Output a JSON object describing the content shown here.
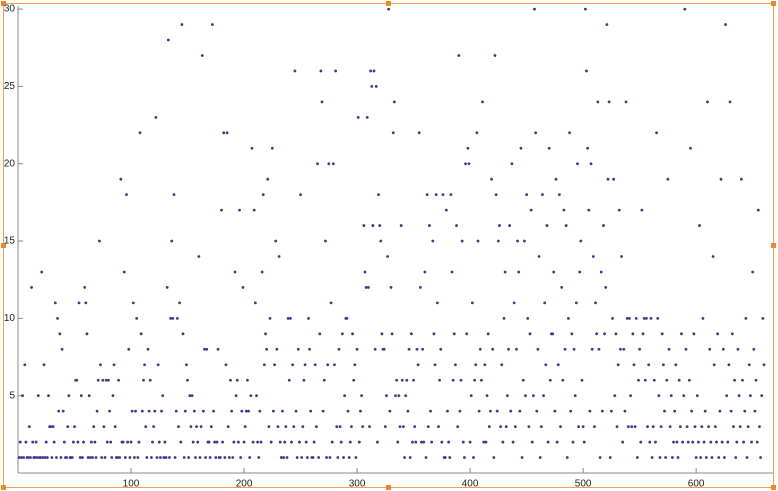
{
  "chart_data": {
    "type": "scatter",
    "color": "#3a3a8c",
    "xlim": [
      0,
      668
    ],
    "ylim": [
      0,
      30.2
    ],
    "xticks": [
      100,
      200,
      300,
      400,
      500,
      600
    ],
    "yticks": [
      5,
      10,
      15,
      20,
      25,
      30
    ],
    "x": [
      1,
      2,
      3,
      4,
      5,
      6,
      7,
      8,
      9,
      10,
      11,
      12,
      13,
      14,
      15,
      16,
      17,
      18,
      19,
      20,
      21,
      22,
      23,
      24,
      25,
      26,
      27,
      28,
      29,
      30,
      31,
      32,
      33,
      34,
      35,
      36,
      37,
      38,
      39,
      40,
      41,
      42,
      43,
      44,
      45,
      46,
      47,
      48,
      49,
      50,
      51,
      52,
      53,
      54,
      55,
      56,
      57,
      58,
      59,
      60,
      61,
      62,
      63,
      64,
      65,
      66,
      67,
      68,
      69,
      70,
      71,
      72,
      73,
      74,
      75,
      76,
      77,
      78,
      79,
      80,
      81,
      82,
      83,
      84,
      85,
      86,
      87,
      88,
      89,
      90,
      91,
      92,
      93,
      94,
      95,
      96,
      97,
      98,
      99,
      100,
      101,
      102,
      103,
      104,
      105,
      106,
      107,
      108,
      109,
      110,
      111,
      112,
      113,
      114,
      115,
      116,
      117,
      118,
      119,
      120,
      121,
      122,
      123,
      124,
      125,
      126,
      127,
      128,
      129,
      130,
      131,
      132,
      133,
      134,
      135,
      136,
      137,
      138,
      139,
      140,
      141,
      142,
      143,
      144,
      145,
      146,
      147,
      148,
      149,
      150,
      151,
      152,
      153,
      154,
      155,
      156,
      157,
      158,
      159,
      160,
      161,
      162,
      163,
      164,
      165,
      166,
      167,
      168,
      169,
      170,
      171,
      172,
      173,
      174,
      175,
      176,
      177,
      178,
      179,
      180,
      181,
      182,
      183,
      184,
      185,
      186,
      187,
      188,
      189,
      190,
      191,
      192,
      193,
      194,
      195,
      196,
      197,
      198,
      199,
      200,
      201,
      202,
      203,
      204,
      205,
      206,
      207,
      208,
      209,
      210,
      211,
      212,
      213,
      214,
      215,
      216,
      217,
      218,
      219,
      220,
      221,
      222,
      223,
      224,
      225,
      226,
      227,
      228,
      229,
      230,
      231,
      232,
      233,
      234,
      235,
      236,
      237,
      238,
      239,
      240,
      241,
      242,
      243,
      244,
      245,
      246,
      247,
      248,
      249,
      250,
      251,
      252,
      253,
      254,
      255,
      256,
      257,
      258,
      259,
      260,
      261,
      262,
      263,
      264,
      265,
      266,
      267,
      268,
      269,
      270,
      271,
      272,
      273,
      274,
      275,
      276,
      277,
      278,
      279,
      280,
      281,
      282,
      283,
      284,
      285,
      286,
      287,
      288,
      289,
      290,
      291,
      292,
      293,
      294,
      295,
      296,
      297,
      298,
      299,
      300,
      301,
      302,
      303,
      304,
      305,
      306,
      307,
      308,
      309,
      310,
      311,
      312,
      313,
      314,
      315,
      316,
      317,
      318,
      319,
      320,
      321,
      322,
      323,
      324,
      325,
      326,
      327,
      328,
      329,
      330,
      331,
      332,
      333,
      334,
      335,
      336,
      337,
      338,
      339,
      340,
      341,
      342,
      343,
      344,
      345,
      346,
      347,
      348,
      349,
      350,
      351,
      352,
      353,
      354,
      355,
      356,
      357,
      358,
      359,
      360,
      361,
      362,
      363,
      364,
      365,
      366,
      367,
      368,
      369,
      370,
      371,
      372,
      373,
      374,
      375,
      376,
      377,
      378,
      379,
      380,
      381,
      382,
      383,
      384,
      385,
      386,
      387,
      388,
      389,
      390,
      391,
      392,
      393,
      394,
      395,
      396,
      397,
      398,
      399,
      400,
      401,
      402,
      403,
      404,
      405,
      406,
      407,
      408,
      409,
      410,
      411,
      412,
      413,
      414,
      415,
      416,
      417,
      418,
      419,
      420,
      421,
      422,
      423,
      424,
      425,
      426,
      427,
      428,
      429,
      430,
      431,
      432,
      433,
      434,
      435,
      436,
      437,
      438,
      439,
      440,
      441,
      442,
      443,
      444,
      445,
      446,
      447,
      448,
      449,
      450,
      451,
      452,
      453,
      454,
      455,
      456,
      457,
      458,
      459,
      460,
      461,
      462,
      463,
      464,
      465,
      466,
      467,
      468,
      469,
      470,
      471,
      472,
      473,
      474,
      475,
      476,
      477,
      478,
      479,
      480,
      481,
      482,
      483,
      484,
      485,
      486,
      487,
      488,
      489,
      490,
      491,
      492,
      493,
      494,
      495,
      496,
      497,
      498,
      499,
      500,
      501,
      502,
      503,
      504,
      505,
      506,
      507,
      508,
      509,
      510,
      511,
      512,
      513,
      514,
      515,
      516,
      517,
      518,
      519,
      520,
      521,
      522,
      523,
      524,
      525,
      526,
      527,
      528,
      529,
      530,
      531,
      532,
      533,
      534,
      535,
      536,
      537,
      538,
      539,
      540,
      541,
      542,
      543,
      544,
      545,
      546,
      547,
      548,
      549,
      550,
      551,
      552,
      553,
      554,
      555,
      556,
      557,
      558,
      559,
      560,
      561,
      562,
      563,
      564,
      565,
      566,
      567,
      568,
      569,
      570,
      571,
      572,
      573,
      574,
      575,
      576,
      577,
      578,
      579,
      580,
      581,
      582,
      583,
      584,
      585,
      586,
      587,
      588,
      589,
      590,
      591,
      592,
      593,
      594,
      595,
      596,
      597,
      598,
      599,
      600,
      601,
      602,
      603,
      604,
      605,
      606,
      607,
      608,
      609,
      610,
      611,
      612,
      613,
      614,
      615,
      616,
      617,
      618,
      619,
      620,
      621,
      622,
      623,
      624,
      625,
      626,
      627,
      628,
      629,
      630,
      631,
      632,
      633,
      634,
      635,
      636,
      637,
      638,
      639,
      640,
      641,
      642,
      643,
      644,
      645,
      646,
      647,
      648,
      649,
      650,
      651,
      652,
      653,
      654,
      655,
      656,
      657,
      658,
      659,
      660
    ],
    "values": [
      1,
      2,
      1,
      5,
      1,
      7,
      2,
      1,
      1,
      3,
      1,
      12,
      2,
      1,
      1,
      2,
      1,
      5,
      1,
      1,
      13,
      1,
      7,
      1,
      2,
      1,
      5,
      3,
      3,
      1,
      3,
      2,
      11,
      1,
      10,
      4,
      9,
      1,
      8,
      4,
      2,
      1,
      1,
      3,
      5,
      1,
      1,
      1,
      2,
      3,
      6,
      6,
      2,
      11,
      1,
      5,
      1,
      2,
      12,
      11,
      9,
      1,
      5,
      1,
      2,
      1,
      3,
      2,
      1,
      4,
      6,
      15,
      7,
      1,
      6,
      3,
      1,
      6,
      2,
      6,
      4,
      2,
      1,
      5,
      7,
      3,
      1,
      1,
      6,
      1,
      19,
      2,
      2,
      13,
      1,
      18,
      2,
      8,
      1,
      2,
      4,
      11,
      1,
      4,
      10,
      1,
      2,
      22,
      9,
      4,
      6,
      7,
      3,
      1,
      8,
      4,
      6,
      1,
      2,
      3,
      4,
      23,
      1,
      7,
      2,
      1,
      4,
      5,
      1,
      2,
      1,
      12,
      28,
      1,
      10,
      15,
      10,
      18,
      1,
      4,
      10,
      3,
      11,
      2,
      29,
      9,
      1,
      4,
      7,
      6,
      1,
      5,
      3,
      5,
      2,
      4,
      1,
      3,
      2,
      14,
      1,
      3,
      27,
      4,
      8,
      1,
      8,
      2,
      2,
      1,
      3,
      29,
      4,
      2,
      1,
      2,
      8,
      1,
      1,
      17,
      2,
      22,
      1,
      7,
      22,
      3,
      1,
      6,
      4,
      1,
      2,
      13,
      5,
      6,
      2,
      17,
      1,
      4,
      12,
      2,
      3,
      4,
      6,
      4,
      1,
      5,
      21,
      2,
      17,
      11,
      5,
      2,
      1,
      4,
      2,
      13,
      18,
      7,
      9,
      8,
      19,
      3,
      10,
      2,
      21,
      4,
      7,
      15,
      8,
      3,
      14,
      2,
      1,
      4,
      1,
      2,
      3,
      1,
      10,
      6,
      10,
      2,
      7,
      3,
      26,
      4,
      1,
      8,
      2,
      18,
      1,
      3,
      6,
      7,
      2,
      1,
      10,
      8,
      4,
      1,
      1,
      2,
      7,
      3,
      20,
      1,
      9,
      26,
      24,
      4,
      6,
      15,
      1,
      7,
      20,
      1,
      11,
      2,
      20,
      7,
      26,
      3,
      1,
      8,
      3,
      2,
      9,
      1,
      5,
      10,
      10,
      4,
      1,
      2,
      3,
      9,
      6,
      7,
      1,
      8,
      23,
      2,
      4,
      5,
      3,
      16,
      13,
      12,
      23,
      12,
      3,
      26,
      25,
      16,
      26,
      8,
      25,
      2,
      18,
      16,
      15,
      9,
      8,
      8,
      3,
      5,
      14,
      30,
      4,
      12,
      9,
      22,
      24,
      5,
      6,
      2,
      5,
      3,
      16,
      6,
      3,
      1,
      5,
      6,
      4,
      8,
      1,
      9,
      2,
      6,
      3,
      2,
      8,
      7,
      22,
      12,
      2,
      8,
      2,
      13,
      1,
      18,
      3,
      16,
      4,
      2,
      15,
      9,
      7,
      18,
      11,
      3,
      6,
      8,
      2,
      18,
      1,
      1,
      17,
      4,
      2,
      1,
      18,
      13,
      6,
      9,
      7,
      16,
      3,
      27,
      4,
      6,
      15,
      2,
      1,
      20,
      9,
      21,
      20,
      2,
      5,
      11,
      1,
      6,
      7,
      22,
      15,
      4,
      8,
      6,
      24,
      2,
      7,
      2,
      5,
      9,
      3,
      4,
      19,
      8,
      1,
      27,
      18,
      4,
      15,
      16,
      3,
      7,
      2,
      10,
      13,
      3,
      5,
      8,
      16,
      4,
      20,
      2,
      11,
      3,
      8,
      15,
      13,
      4,
      21,
      1,
      6,
      15,
      5,
      18,
      10,
      3,
      9,
      17,
      2,
      5,
      30,
      22,
      4,
      8,
      14,
      1,
      3,
      18,
      5,
      11,
      7,
      16,
      2,
      21,
      6,
      9,
      9,
      13,
      4,
      19,
      2,
      7,
      18,
      3,
      12,
      6,
      17,
      8,
      16,
      1,
      10,
      22,
      4,
      9,
      2,
      8,
      5,
      11,
      20,
      3,
      13,
      15,
      6,
      3,
      2,
      30,
      26,
      21,
      17,
      4,
      20,
      8,
      14,
      3,
      11,
      9,
      24,
      8,
      1,
      13,
      4,
      16,
      9,
      12,
      29,
      19,
      24,
      1,
      4,
      10,
      19,
      5,
      9,
      3,
      7,
      17,
      8,
      14,
      2,
      8,
      4,
      24,
      10,
      3,
      10,
      5,
      3,
      9,
      7,
      3,
      10,
      1,
      6,
      8,
      2,
      17,
      9,
      10,
      6,
      10,
      3,
      7,
      2,
      10,
      1,
      3,
      6,
      2,
      22,
      10,
      5,
      1,
      3,
      9,
      7,
      4,
      1,
      6,
      19,
      8,
      3,
      5,
      1,
      2,
      4,
      7,
      2,
      1,
      6,
      3,
      9,
      2,
      5,
      30,
      8,
      3,
      2,
      6,
      21,
      4,
      2,
      9,
      3,
      1,
      5,
      2,
      16,
      1,
      3,
      10,
      2,
      4,
      1,
      24,
      3,
      8,
      2,
      1,
      14,
      7,
      3,
      2,
      9,
      1,
      4,
      19,
      2,
      8,
      1,
      29,
      5,
      2,
      7,
      24,
      4,
      9,
      3,
      6,
      1,
      2,
      8,
      5,
      3,
      19,
      6,
      2,
      4,
      10,
      1,
      3,
      7,
      5,
      2,
      13,
      8,
      4,
      6,
      2,
      17,
      3,
      1,
      5,
      10,
      7
    ]
  }
}
